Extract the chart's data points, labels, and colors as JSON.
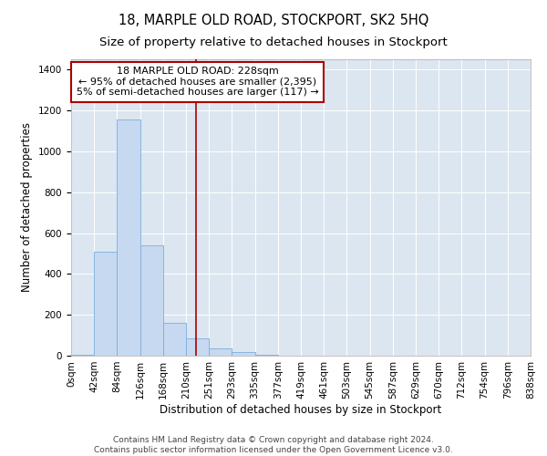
{
  "title": "18, MARPLE OLD ROAD, STOCKPORT, SK2 5HQ",
  "subtitle": "Size of property relative to detached houses in Stockport",
  "xlabel": "Distribution of detached houses by size in Stockport",
  "ylabel": "Number of detached properties",
  "bar_values": [
    5,
    510,
    1155,
    540,
    160,
    85,
    35,
    20,
    5,
    0,
    0,
    0,
    0,
    0,
    0,
    0,
    0,
    0,
    0,
    0
  ],
  "bin_labels": [
    "0sqm",
    "42sqm",
    "84sqm",
    "126sqm",
    "168sqm",
    "210sqm",
    "251sqm",
    "293sqm",
    "335sqm",
    "377sqm",
    "419sqm",
    "461sqm",
    "503sqm",
    "545sqm",
    "587sqm",
    "629sqm",
    "670sqm",
    "712sqm",
    "754sqm",
    "796sqm",
    "838sqm"
  ],
  "bar_color": "#c6d9f0",
  "bar_edge_color": "#7aaedc",
  "vline_x": 5.5,
  "vline_color": "#aa0000",
  "annotation_box_text": "18 MARPLE OLD ROAD: 228sqm\n← 95% of detached houses are smaller (2,395)\n5% of semi-detached houses are larger (117) →",
  "ylim": [
    0,
    1450
  ],
  "yticks": [
    0,
    200,
    400,
    600,
    800,
    1000,
    1200,
    1400
  ],
  "bg_color": "#dce6f0",
  "grid_color": "#ffffff",
  "footer_text": "Contains HM Land Registry data © Crown copyright and database right 2024.\nContains public sector information licensed under the Open Government Licence v3.0.",
  "title_fontsize": 10.5,
  "subtitle_fontsize": 9.5,
  "axis_label_fontsize": 8.5,
  "tick_fontsize": 7.5,
  "annotation_fontsize": 8,
  "footer_fontsize": 6.5
}
